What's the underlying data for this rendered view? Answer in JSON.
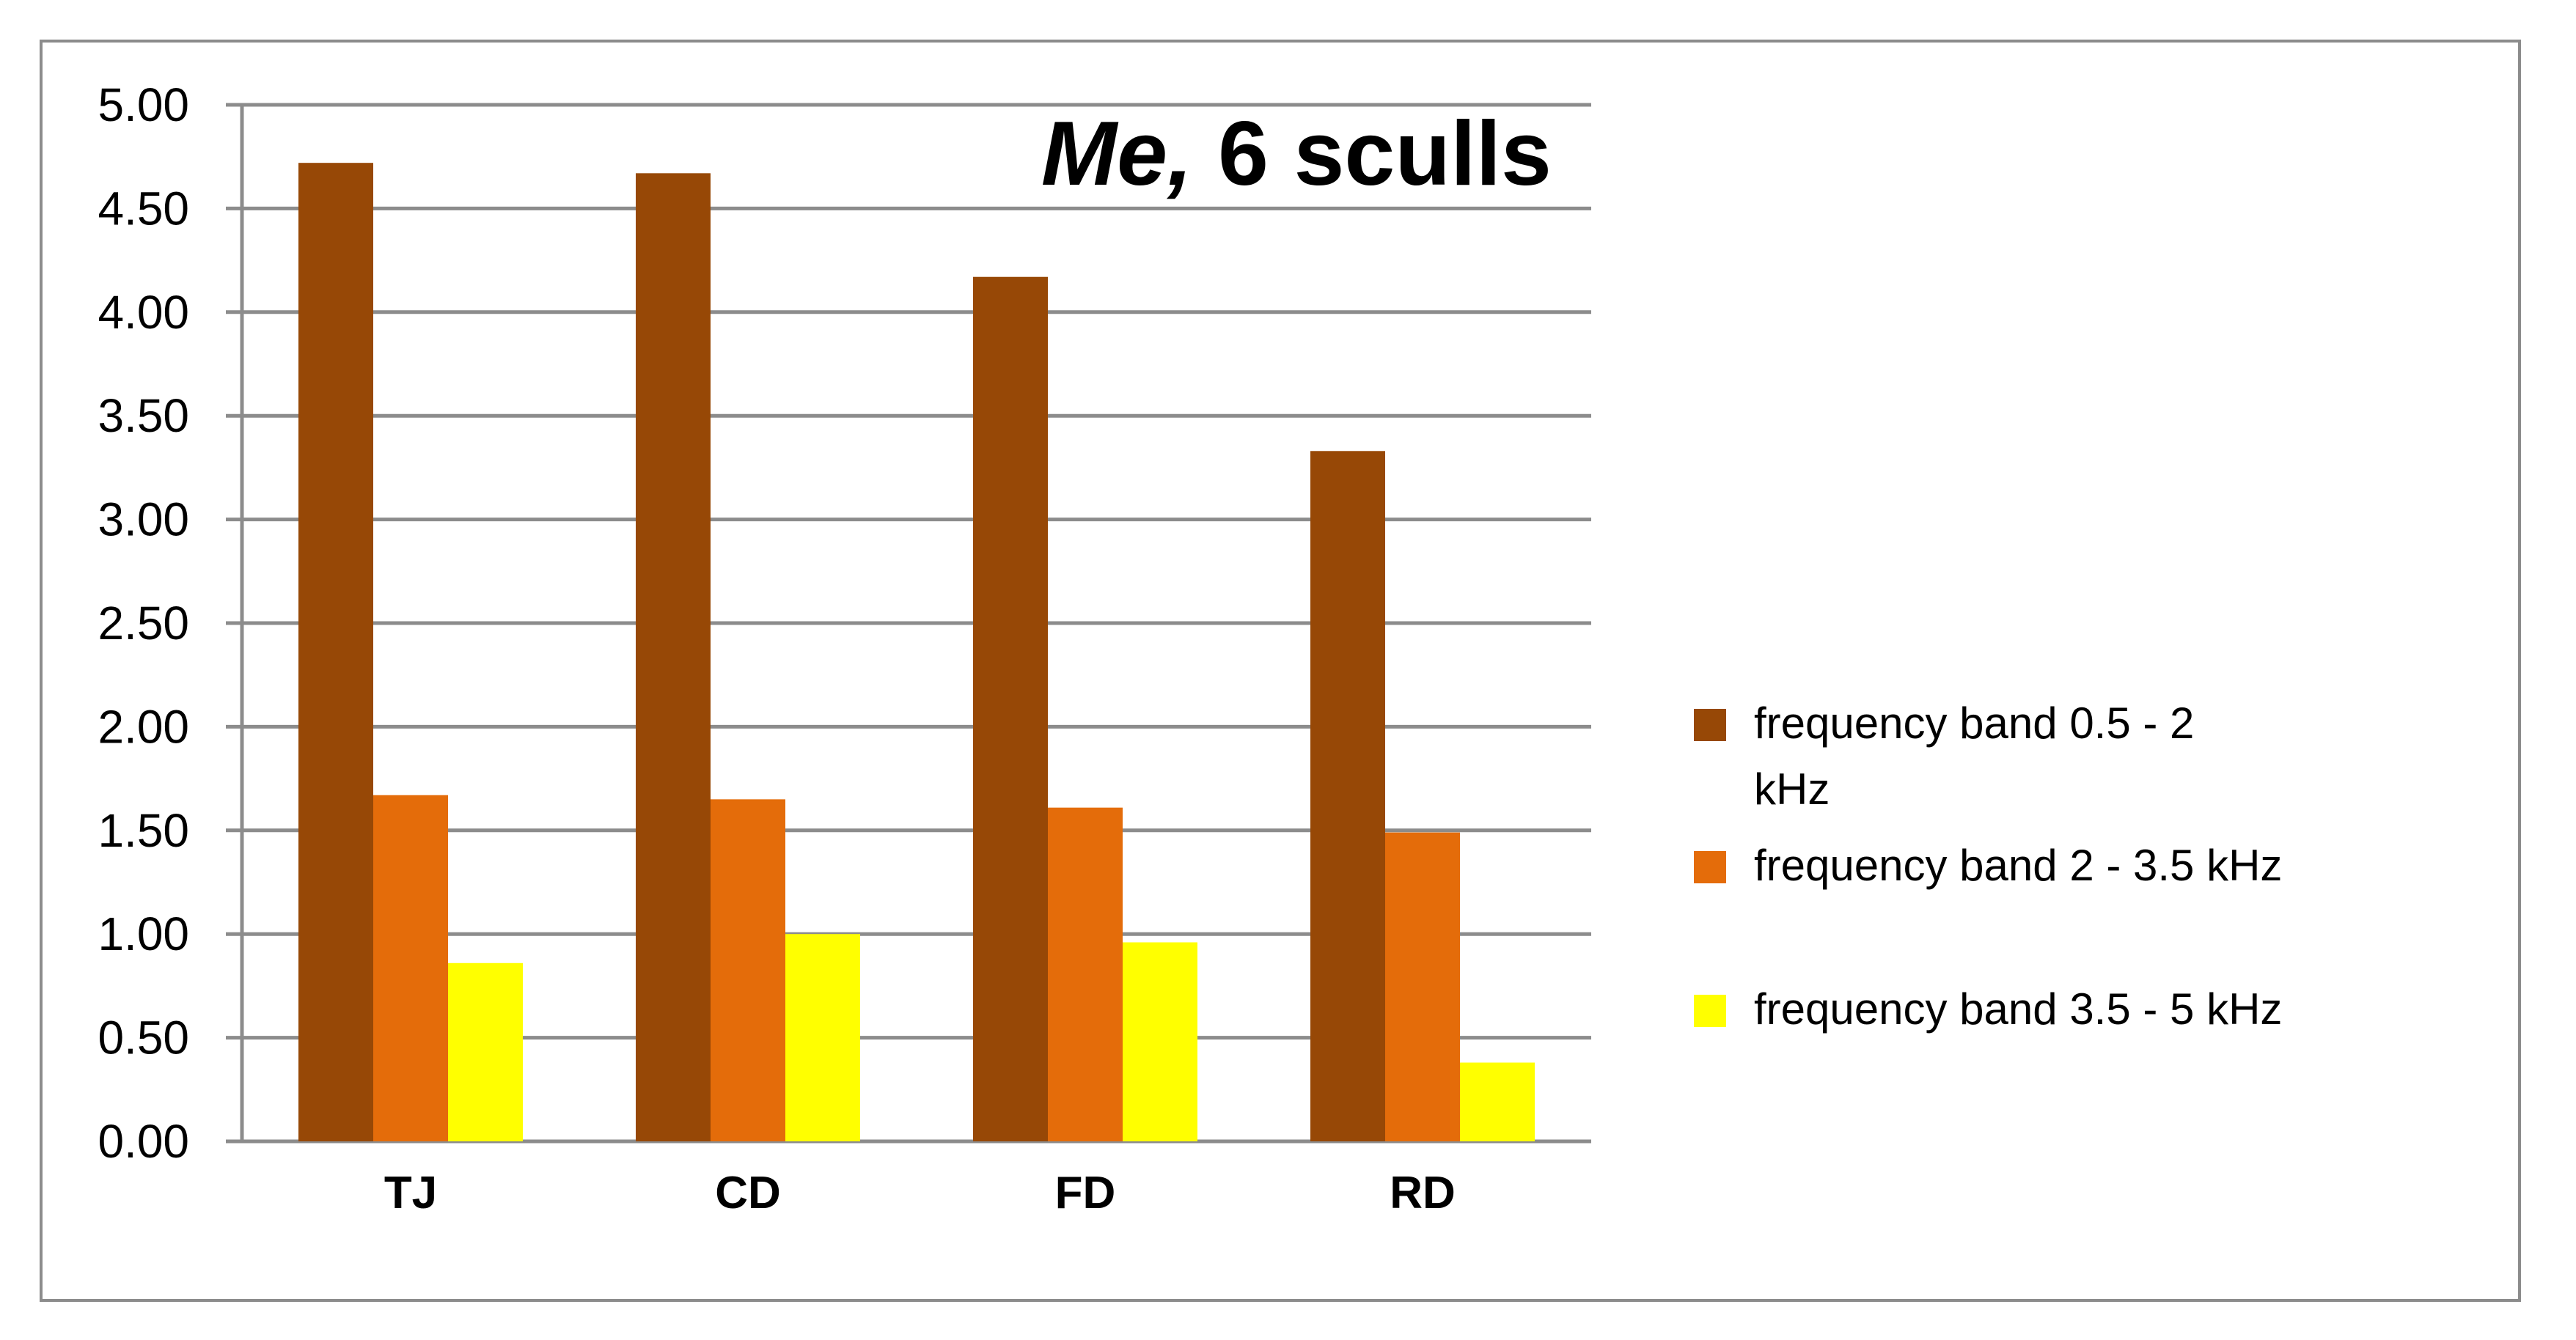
{
  "chart_data": {
    "type": "bar",
    "title_italic": "Me,",
    "title_rest": " 6 sculls",
    "categories": [
      "TJ",
      "CD",
      "FD",
      "RD"
    ],
    "ylim": [
      0,
      5
    ],
    "yticks": [
      "0.00",
      "0.50",
      "1.00",
      "1.50",
      "2.00",
      "2.50",
      "3.00",
      "3.50",
      "4.00",
      "4.50",
      "5.00"
    ],
    "grid": true,
    "legend_position": "right",
    "series": [
      {
        "name": "frequency band    0.5 - 2 kHz",
        "legend_line1": "frequency band    0.5 - 2",
        "legend_line2": "kHz",
        "color": "#974806",
        "values": [
          4.72,
          4.67,
          4.17,
          3.33
        ]
      },
      {
        "name": "frequency band    2 - 3.5 kHz",
        "legend_line1": "frequency band    2 - 3.5 kHz",
        "legend_line2": "",
        "color": "#E46C0A",
        "values": [
          1.67,
          1.65,
          1.61,
          1.49
        ]
      },
      {
        "name": "frequency band    3.5 - 5 kHz",
        "legend_line1": "frequency band    3.5 - 5 kHz",
        "legend_line2": "",
        "color": "#FFFF00",
        "values": [
          0.86,
          1.0,
          0.96,
          0.38
        ]
      }
    ]
  }
}
